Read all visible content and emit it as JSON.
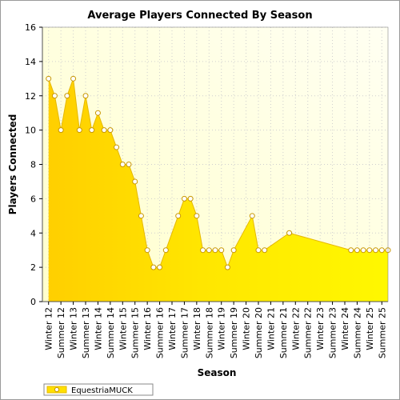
{
  "chart_data": {
    "type": "area",
    "title": "Average Players Connected By Season",
    "xlabel": "Season",
    "ylabel": "Players Connected",
    "ylim": [
      0,
      16
    ],
    "yticks": [
      0,
      2,
      4,
      6,
      8,
      10,
      12,
      14,
      16
    ],
    "grid": true,
    "legend_position": "bottom-left",
    "categories": [
      "Winter 12",
      "Summer 12",
      "Winter 13",
      "Summer 13",
      "Winter 14",
      "Summer 14",
      "Winter 15",
      "Summer 15",
      "Winter 16",
      "Summer 16",
      "Winter 17",
      "Summer 17",
      "Winter 18",
      "Summer 18",
      "Winter 19",
      "Summer 19",
      "Winter 20",
      "Summer 20",
      "Winter 21",
      "Summer 21",
      "Winter 22",
      "Summer 22",
      "Winter 23",
      "Summer 23",
      "Winter 24",
      "Summer 24",
      "Winter 25",
      "Summer 25"
    ],
    "series": [
      {
        "name": "EquestriaMUCK",
        "color": "#ffe000",
        "points": [
          {
            "x": 0.0,
            "y": 13
          },
          {
            "x": 0.5,
            "y": 12
          },
          {
            "x": 1.0,
            "y": 10
          },
          {
            "x": 1.5,
            "y": 12
          },
          {
            "x": 2.0,
            "y": 13
          },
          {
            "x": 2.5,
            "y": 10
          },
          {
            "x": 3.0,
            "y": 12
          },
          {
            "x": 3.5,
            "y": 10
          },
          {
            "x": 4.0,
            "y": 11
          },
          {
            "x": 4.5,
            "y": 10
          },
          {
            "x": 5.0,
            "y": 10
          },
          {
            "x": 5.5,
            "y": 9
          },
          {
            "x": 6.0,
            "y": 8
          },
          {
            "x": 6.5,
            "y": 8
          },
          {
            "x": 7.0,
            "y": 7
          },
          {
            "x": 7.5,
            "y": 5
          },
          {
            "x": 8.0,
            "y": 3
          },
          {
            "x": 8.5,
            "y": 2
          },
          {
            "x": 9.0,
            "y": 2
          },
          {
            "x": 9.5,
            "y": 3
          },
          {
            "x": 10.5,
            "y": 5
          },
          {
            "x": 11.0,
            "y": 6
          },
          {
            "x": 11.5,
            "y": 6
          },
          {
            "x": 12.0,
            "y": 5
          },
          {
            "x": 12.5,
            "y": 3
          },
          {
            "x": 13.0,
            "y": 3
          },
          {
            "x": 13.5,
            "y": 3
          },
          {
            "x": 14.0,
            "y": 3
          },
          {
            "x": 14.5,
            "y": 2
          },
          {
            "x": 15.0,
            "y": 3
          },
          {
            "x": 16.5,
            "y": 5
          },
          {
            "x": 17.0,
            "y": 3
          },
          {
            "x": 17.5,
            "y": 3
          },
          {
            "x": 19.5,
            "y": 4
          },
          {
            "x": 24.5,
            "y": 3
          },
          {
            "x": 25.0,
            "y": 3
          },
          {
            "x": 25.5,
            "y": 3
          },
          {
            "x": 26.0,
            "y": 3
          },
          {
            "x": 26.5,
            "y": 3
          },
          {
            "x": 27.0,
            "y": 3
          },
          {
            "x": 27.5,
            "y": 3
          }
        ]
      }
    ]
  }
}
